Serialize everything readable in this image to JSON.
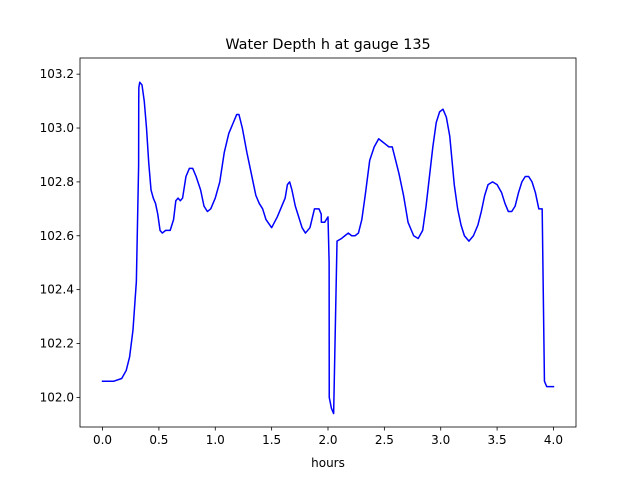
{
  "chart_data": {
    "type": "line",
    "title": "Water Depth h at gauge 135",
    "xlabel": "hours",
    "ylabel": "",
    "xlim": [
      -0.2,
      4.2
    ],
    "ylim": [
      101.89,
      103.26
    ],
    "xticks": [
      0.0,
      0.5,
      1.0,
      1.5,
      2.0,
      2.5,
      3.0,
      3.5,
      4.0
    ],
    "xtick_labels": [
      "0.0",
      "0.5",
      "1.0",
      "1.5",
      "2.0",
      "2.5",
      "3.0",
      "3.5",
      "4.0"
    ],
    "yticks": [
      102.0,
      102.2,
      102.4,
      102.6,
      102.8,
      103.0,
      103.2
    ],
    "ytick_labels": [
      "102.0",
      "102.2",
      "102.4",
      "102.6",
      "102.8",
      "103.0",
      "103.2"
    ],
    "grid": false,
    "legend": "none",
    "series": [
      {
        "color": "#0000ff",
        "x": [
          0.0,
          0.1,
          0.17,
          0.21,
          0.24,
          0.27,
          0.3,
          0.32,
          0.321,
          0.322,
          0.33,
          0.35,
          0.37,
          0.39,
          0.41,
          0.43,
          0.45,
          0.47,
          0.49,
          0.51,
          0.53,
          0.56,
          0.6,
          0.63,
          0.65,
          0.67,
          0.69,
          0.71,
          0.74,
          0.77,
          0.8,
          0.83,
          0.87,
          0.9,
          0.93,
          0.96,
          1.0,
          1.04,
          1.08,
          1.12,
          1.16,
          1.19,
          1.21,
          1.24,
          1.28,
          1.32,
          1.36,
          1.39,
          1.42,
          1.45,
          1.5,
          1.55,
          1.6,
          1.62,
          1.64,
          1.66,
          1.68,
          1.71,
          1.74,
          1.77,
          1.8,
          1.84,
          1.88,
          1.92,
          1.94,
          1.941,
          1.97,
          2.0,
          2.01,
          2.011,
          2.03,
          2.05,
          2.08,
          2.12,
          2.15,
          2.18,
          2.21,
          2.24,
          2.27,
          2.3,
          2.33,
          2.37,
          2.41,
          2.45,
          2.48,
          2.51,
          2.54,
          2.57,
          2.6,
          2.63,
          2.67,
          2.71,
          2.76,
          2.8,
          2.84,
          2.87,
          2.9,
          2.93,
          2.96,
          2.99,
          3.02,
          3.05,
          3.08,
          3.1,
          3.12,
          3.15,
          3.18,
          3.21,
          3.25,
          3.29,
          3.33,
          3.36,
          3.39,
          3.42,
          3.46,
          3.5,
          3.54,
          3.57,
          3.6,
          3.63,
          3.66,
          3.69,
          3.72,
          3.75,
          3.78,
          3.81,
          3.84,
          3.87,
          3.9,
          3.92,
          3.94,
          3.96,
          3.98,
          3.99,
          3.991,
          4.0
        ],
        "y": [
          102.06,
          102.06,
          102.07,
          102.1,
          102.15,
          102.25,
          102.43,
          102.86,
          103.09,
          103.15,
          103.17,
          103.16,
          103.1,
          103.0,
          102.87,
          102.77,
          102.74,
          102.72,
          102.68,
          102.62,
          102.61,
          102.62,
          102.62,
          102.66,
          102.73,
          102.74,
          102.73,
          102.74,
          102.82,
          102.85,
          102.85,
          102.82,
          102.77,
          102.71,
          102.69,
          102.7,
          102.74,
          102.8,
          102.91,
          102.98,
          103.02,
          103.05,
          103.05,
          103.0,
          102.91,
          102.83,
          102.75,
          102.72,
          102.7,
          102.66,
          102.63,
          102.67,
          102.72,
          102.74,
          102.79,
          102.8,
          102.77,
          102.71,
          102.67,
          102.63,
          102.61,
          102.63,
          102.7,
          102.7,
          102.68,
          102.65,
          102.65,
          102.67,
          102.5,
          102.0,
          101.96,
          101.94,
          102.58,
          102.59,
          102.6,
          102.61,
          102.6,
          102.6,
          102.61,
          102.66,
          102.75,
          102.88,
          102.93,
          102.96,
          102.95,
          102.94,
          102.93,
          102.93,
          102.88,
          102.83,
          102.75,
          102.65,
          102.6,
          102.59,
          102.62,
          102.71,
          102.82,
          102.93,
          103.02,
          103.06,
          103.07,
          103.04,
          102.97,
          102.88,
          102.79,
          102.7,
          102.64,
          102.6,
          102.58,
          102.6,
          102.64,
          102.69,
          102.75,
          102.79,
          102.8,
          102.79,
          102.76,
          102.72,
          102.69,
          102.69,
          102.71,
          102.76,
          102.8,
          102.82,
          102.82,
          102.8,
          102.76,
          102.7,
          102.7,
          102.06,
          102.04,
          102.04,
          102.04,
          102.04,
          102.04,
          102.04
        ]
      }
    ]
  }
}
